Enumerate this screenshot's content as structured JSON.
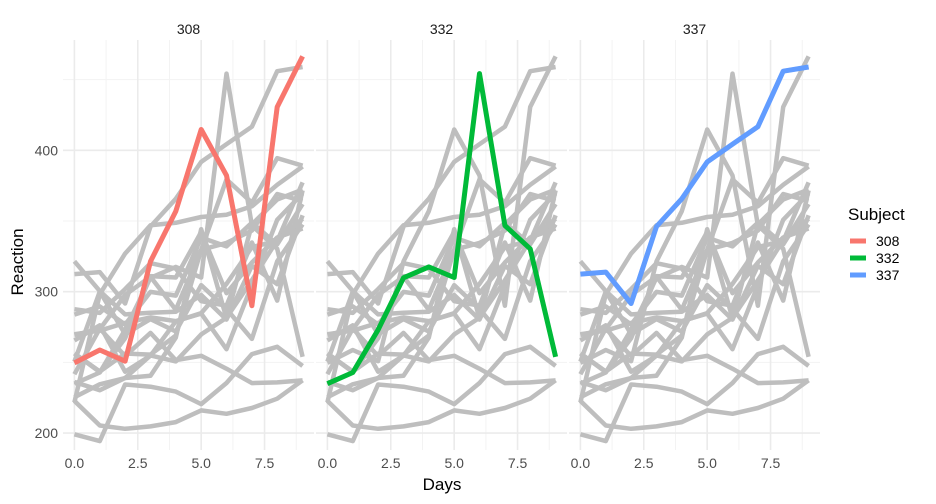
{
  "chart_data": {
    "type": "line",
    "xlabel": "Days",
    "ylabel": "Reaction",
    "xlim": [
      -0.45,
      9.45
    ],
    "ylim": [
      188,
      478
    ],
    "x_ticks": [
      "0.0",
      "2.5",
      "5.0",
      "7.5"
    ],
    "x_tick_values": [
      0,
      2.5,
      5,
      7.5
    ],
    "y_ticks": [
      "200",
      "300",
      "400"
    ],
    "y_tick_values": [
      200,
      300,
      400
    ],
    "grid": true,
    "facets": [
      "308",
      "332",
      "337"
    ],
    "legend": {
      "title": "Subject",
      "placement": "right",
      "entries": [
        "308",
        "332",
        "337"
      ]
    },
    "colors": {
      "308": "#F8766D",
      "332": "#00BA38",
      "337": "#619CFF",
      "background_lines": "#BEBEBE"
    },
    "x": [
      0,
      1,
      2,
      3,
      4,
      5,
      6,
      7,
      8,
      9
    ],
    "series": [
      {
        "name": "308",
        "values": [
          249.6,
          258.7,
          250.8,
          321.4,
          356.9,
          414.7,
          382.2,
          290.1,
          430.6,
          466.4
        ]
      },
      {
        "subject": "309",
        "values": [
          222.7,
          205.3,
          203.0,
          204.7,
          207.7,
          216.0,
          213.6,
          217.7,
          224.3,
          237.3
        ]
      },
      {
        "subject": "310",
        "values": [
          199.1,
          194.3,
          234.3,
          232.8,
          229.3,
          220.5,
          235.4,
          255.8,
          261.0,
          247.5
        ]
      },
      {
        "subject": "330",
        "values": [
          321.5,
          300.4,
          283.9,
          285.1,
          285.8,
          297.6,
          280.2,
          318.3,
          305.3,
          354.0
        ]
      },
      {
        "subject": "331",
        "values": [
          287.6,
          285.0,
          301.8,
          320.1,
          316.3,
          293.3,
          290.1,
          334.8,
          293.7,
          371.6
        ]
      },
      {
        "name": "332",
        "values": [
          234.9,
          242.8,
          273.0,
          309.8,
          317.5,
          310.0,
          454.2,
          346.8,
          330.3,
          253.9
        ]
      },
      {
        "subject": "333",
        "values": [
          283.8,
          289.6,
          276.8,
          299.8,
          297.2,
          338.2,
          332.0,
          348.8,
          333.4,
          362.0
        ]
      },
      {
        "subject": "334",
        "values": [
          265.5,
          276.2,
          243.4,
          254.7,
          279.0,
          284.8,
          305.5,
          331.5,
          335.8,
          377.3
        ]
      },
      {
        "subject": "335",
        "values": [
          241.6,
          273.9,
          254.5,
          270.8,
          251.5,
          254.6,
          245.5,
          235.3,
          235.8,
          237.2
        ]
      },
      {
        "name": "337",
        "values": [
          312.4,
          313.8,
          291.6,
          346.1,
          365.7,
          391.8,
          404.3,
          416.7,
          455.9,
          458.9
        ]
      },
      {
        "subject": "349",
        "values": [
          236.1,
          230.3,
          238.9,
          254.9,
          250.7,
          269.8,
          281.6,
          308.1,
          336.3,
          351.6
        ]
      },
      {
        "subject": "350",
        "values": [
          256.3,
          243.5,
          256.2,
          255.5,
          268.9,
          329.7,
          379.4,
          362.9,
          394.5,
          389.1
        ]
      },
      {
        "subject": "351",
        "values": [
          250.5,
          300.1,
          269.9,
          280.6,
          271.8,
          304.6,
          287.7,
          266.6,
          321.5,
          347.6
        ]
      },
      {
        "subject": "352",
        "values": [
          221.7,
          298.2,
          326.9,
          346.9,
          348.7,
          352.8,
          354.4,
          360.4,
          375.6,
          388.5
        ]
      },
      {
        "subject": "369",
        "values": [
          256.3,
          243.2,
          267.0,
          311.0,
          310.0,
          342.2,
          298.9,
          320.6,
          338.3,
          344.7
        ]
      },
      {
        "subject": "370",
        "values": [
          225.3,
          234.5,
          238.9,
          240.5,
          267.5,
          344.2,
          281.1,
          347.6,
          365.2,
          372.2
        ]
      },
      {
        "subject": "371",
        "values": [
          269.9,
          272.4,
          277.9,
          281.8,
          279.2,
          284.5,
          259.3,
          304.6,
          350.8,
          369.5
        ]
      },
      {
        "subject": "372",
        "values": [
          269.4,
          273.5,
          297.6,
          310.6,
          287.2,
          329.6,
          334.5,
          343.2,
          369.1,
          364.1
        ]
      }
    ]
  }
}
